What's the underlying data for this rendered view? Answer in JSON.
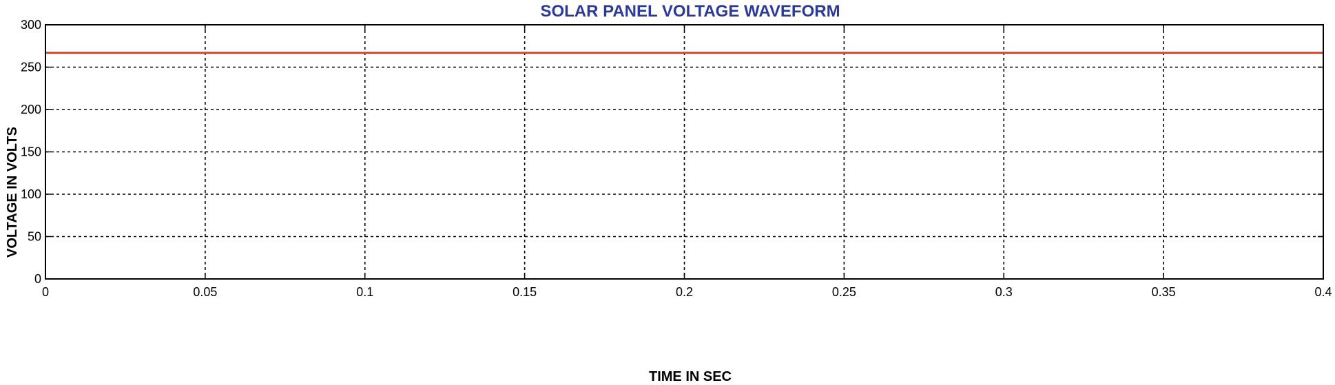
{
  "chart_data": {
    "type": "line",
    "title": "SOLAR PANEL VOLTAGE WAVEFORM",
    "xlabel": "TIME IN SEC",
    "ylabel": "VOLTAGE IN VOLTS",
    "xlim": [
      0,
      0.4
    ],
    "ylim": [
      0,
      300
    ],
    "x_ticks": [
      0,
      0.05,
      0.1,
      0.15,
      0.2,
      0.25,
      0.3,
      0.35,
      0.4
    ],
    "x_tick_labels": [
      "0",
      "0.05",
      "0.1",
      "0.15",
      "0.2",
      "0.25",
      "0.3",
      "0.35",
      "0.4"
    ],
    "y_ticks": [
      0,
      50,
      100,
      150,
      200,
      250,
      300
    ],
    "y_tick_labels": [
      "0",
      "50",
      "100",
      "150",
      "200",
      "250",
      "300"
    ],
    "grid": true,
    "series": [
      {
        "color": "#e8401c",
        "x": [
          0,
          0.4
        ],
        "y": [
          267,
          267
        ]
      }
    ],
    "colors": {
      "title": "#2b3a98",
      "series": "#e8401c"
    }
  }
}
